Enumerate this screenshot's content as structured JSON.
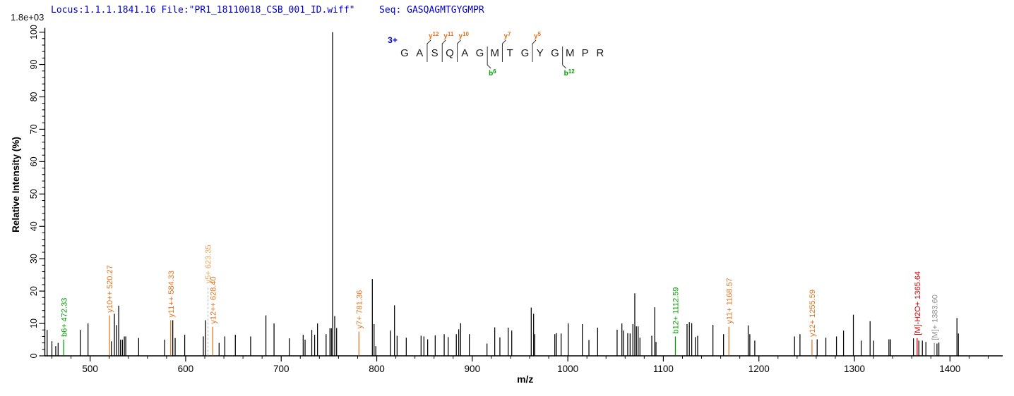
{
  "header": {
    "locus_file": "Locus:1.1.1.1841.16 File:\"PR1_18110018_CSB_001_ID.wiff\"",
    "seq_label": "Seq:",
    "seq_value": "GASQAGMTGYGMPR"
  },
  "intensity_scale": "1.8e+03",
  "sequence_overlay": {
    "charge": "3+",
    "residues": [
      {
        "aa": "G"
      },
      {
        "aa": "A"
      },
      {
        "aa": "S",
        "top": "y12"
      },
      {
        "aa": "Q",
        "top": "y11"
      },
      {
        "aa": "A",
        "top": "y10"
      },
      {
        "aa": "G"
      },
      {
        "aa": "M",
        "bottom": "b6"
      },
      {
        "aa": "T",
        "top": "y7"
      },
      {
        "aa": "G"
      },
      {
        "aa": "Y",
        "top": "y5"
      },
      {
        "aa": "G"
      },
      {
        "aa": "M",
        "bottom": "b12"
      },
      {
        "aa": "P"
      },
      {
        "aa": "R"
      }
    ]
  },
  "colors": {
    "peak_default": "#000000",
    "b_ion": "#00a000",
    "y_ion": "#e4731c",
    "y_faded": "#eca35c",
    "dashed_marker": "#b9c3ce",
    "precursor_loss": "#d40000",
    "precursor": "#909090",
    "header_text": "#0000cc",
    "axis": "#000000",
    "residue_text": "#1a1a1a",
    "divider": "#333333"
  },
  "chart_data": {
    "type": "bar",
    "subtype": "mass-spectrum",
    "title": "",
    "xlabel": "m/z",
    "ylabel": "Relative  Intensity (%)",
    "max_intensity_label": "1.8e+03",
    "xlim": [
      452.6,
      1455.2
    ],
    "ylim": [
      0,
      100
    ],
    "x_ticks": [
      500,
      600,
      700,
      800,
      900,
      1000,
      1100,
      1200,
      1300,
      1400
    ],
    "x_minor_step": 20,
    "y_ticks": [
      0,
      10,
      20,
      30,
      40,
      50,
      60,
      70,
      80,
      90,
      100
    ],
    "y_minor_step": 2,
    "grid": false,
    "peaks": [
      {
        "mz": 455.0,
        "i": 8
      },
      {
        "mz": 460.0,
        "i": 4.5
      },
      {
        "mz": 464.0,
        "i": 3
      },
      {
        "mz": 466.5,
        "i": 4
      },
      {
        "mz": 472.33,
        "i": 5,
        "type": "b_ion",
        "label": "b6+ 472.33"
      },
      {
        "mz": 489.7,
        "i": 8
      },
      {
        "mz": 497.8,
        "i": 10
      },
      {
        "mz": 520.27,
        "i": 12.5,
        "type": "y_ion",
        "label": "y10++ 520.27"
      },
      {
        "mz": 522.3,
        "i": 4.5
      },
      {
        "mz": 525.4,
        "i": 13
      },
      {
        "mz": 527.6,
        "i": 9.5
      },
      {
        "mz": 529.9,
        "i": 15.5
      },
      {
        "mz": 531.8,
        "i": 5
      },
      {
        "mz": 533.8,
        "i": 5
      },
      {
        "mz": 535.8,
        "i": 6
      },
      {
        "mz": 537.3,
        "i": 6
      },
      {
        "mz": 550.8,
        "i": 5.5
      },
      {
        "mz": 578.0,
        "i": 5
      },
      {
        "mz": 584.33,
        "i": 11,
        "type": "y_ion",
        "label": "y11++ 584.33"
      },
      {
        "mz": 586.5,
        "i": 11
      },
      {
        "mz": 589.0,
        "i": 5.5
      },
      {
        "mz": 599.0,
        "i": 6.5
      },
      {
        "mz": 618.5,
        "i": 6
      },
      {
        "mz": 620.8,
        "i": 11
      },
      {
        "mz": 623.35,
        "i": 21.5,
        "type": "y_faded",
        "dashed": true,
        "label": "y5+ 623.35"
      },
      {
        "mz": 628.4,
        "i": 9,
        "type": "y_ion",
        "label": "y12++ 628.40"
      },
      {
        "mz": 635.0,
        "i": 4
      },
      {
        "mz": 641.0,
        "i": 6
      },
      {
        "mz": 652.0,
        "i": 6.5
      },
      {
        "mz": 668.0,
        "i": 6
      },
      {
        "mz": 684.0,
        "i": 12.5
      },
      {
        "mz": 692.5,
        "i": 10
      },
      {
        "mz": 708.5,
        "i": 5.4
      },
      {
        "mz": 723.0,
        "i": 6.5
      },
      {
        "mz": 725.0,
        "i": 5
      },
      {
        "mz": 732.0,
        "i": 8
      },
      {
        "mz": 735.0,
        "i": 6.5
      },
      {
        "mz": 738.0,
        "i": 10
      },
      {
        "mz": 747.0,
        "i": 6.7
      },
      {
        "mz": 751.0,
        "i": 8.5
      },
      {
        "mz": 752.5,
        "i": 8.5
      },
      {
        "mz": 753.8,
        "i": 100
      },
      {
        "mz": 756.0,
        "i": 12.3
      },
      {
        "mz": 758.0,
        "i": 8.6
      },
      {
        "mz": 781.36,
        "i": 7.5,
        "type": "y_ion",
        "label": "y7+ 781.36"
      },
      {
        "mz": 795.4,
        "i": 23.7
      },
      {
        "mz": 797.2,
        "i": 9.8
      },
      {
        "mz": 799.0,
        "i": 3
      },
      {
        "mz": 814.4,
        "i": 7.8
      },
      {
        "mz": 818.6,
        "i": 15.6
      },
      {
        "mz": 821.3,
        "i": 6.2
      },
      {
        "mz": 830.9,
        "i": 5.6
      },
      {
        "mz": 846.4,
        "i": 6.2
      },
      {
        "mz": 849.4,
        "i": 6
      },
      {
        "mz": 853.3,
        "i": 5.1
      },
      {
        "mz": 861.2,
        "i": 6.3
      },
      {
        "mz": 870.6,
        "i": 6.7
      },
      {
        "mz": 874.8,
        "i": 5.8
      },
      {
        "mz": 883.3,
        "i": 6.7
      },
      {
        "mz": 885.8,
        "i": 8.2
      },
      {
        "mz": 887.8,
        "i": 10.1
      },
      {
        "mz": 896.9,
        "i": 6.7
      },
      {
        "mz": 915.4,
        "i": 3.8
      },
      {
        "mz": 923.5,
        "i": 8.8
      },
      {
        "mz": 928.9,
        "i": 5.7
      },
      {
        "mz": 937.6,
        "i": 8.7
      },
      {
        "mz": 941.3,
        "i": 7.8
      },
      {
        "mz": 961.7,
        "i": 14.9
      },
      {
        "mz": 964.2,
        "i": 13
      },
      {
        "mz": 965.4,
        "i": 6.7
      },
      {
        "mz": 986.4,
        "i": 6.7
      },
      {
        "mz": 988.1,
        "i": 7
      },
      {
        "mz": 993.0,
        "i": 6.9
      },
      {
        "mz": 1000.4,
        "i": 10
      },
      {
        "mz": 1015.2,
        "i": 9.8
      },
      {
        "mz": 1022.1,
        "i": 4.9
      },
      {
        "mz": 1031.2,
        "i": 8.7
      },
      {
        "mz": 1051.6,
        "i": 8.1
      },
      {
        "mz": 1056.6,
        "i": 10
      },
      {
        "mz": 1058.3,
        "i": 7.8
      },
      {
        "mz": 1062.7,
        "i": 7
      },
      {
        "mz": 1065.2,
        "i": 6.9
      },
      {
        "mz": 1068.1,
        "i": 9.8
      },
      {
        "mz": 1070.1,
        "i": 19.3
      },
      {
        "mz": 1071.8,
        "i": 9.1
      },
      {
        "mz": 1073.6,
        "i": 9.1
      },
      {
        "mz": 1075.5,
        "i": 5.6
      },
      {
        "mz": 1087.9,
        "i": 6.2
      },
      {
        "mz": 1091.0,
        "i": 15
      },
      {
        "mz": 1092.3,
        "i": 4.3
      },
      {
        "mz": 1112.59,
        "i": 6,
        "type": "b_ion",
        "label": "b12+ 1112.59"
      },
      {
        "mz": 1124.8,
        "i": 9.8
      },
      {
        "mz": 1127.2,
        "i": 10.4
      },
      {
        "mz": 1129.7,
        "i": 10.1
      },
      {
        "mz": 1133.4,
        "i": 5.8
      },
      {
        "mz": 1135.9,
        "i": 6.2
      },
      {
        "mz": 1151.9,
        "i": 9.6
      },
      {
        "mz": 1163.0,
        "i": 6.7
      },
      {
        "mz": 1168.57,
        "i": 9,
        "type": "y_ion",
        "label": "y11+ 1168.57"
      },
      {
        "mz": 1188.8,
        "i": 9.4
      },
      {
        "mz": 1190.5,
        "i": 6.7
      },
      {
        "mz": 1195.7,
        "i": 4.7
      },
      {
        "mz": 1237.3,
        "i": 6
      },
      {
        "mz": 1243.0,
        "i": 6.7
      },
      {
        "mz": 1255.59,
        "i": 5,
        "type": "y_ion",
        "label": "y12+ 1255.59"
      },
      {
        "mz": 1261.0,
        "i": 5.1
      },
      {
        "mz": 1270.1,
        "i": 5.6
      },
      {
        "mz": 1281.2,
        "i": 6
      },
      {
        "mz": 1288.6,
        "i": 7.8
      },
      {
        "mz": 1298.9,
        "i": 12.7
      },
      {
        "mz": 1307.1,
        "i": 4.7
      },
      {
        "mz": 1316.4,
        "i": 10.7
      },
      {
        "mz": 1320.1,
        "i": 4.7
      },
      {
        "mz": 1336.1,
        "i": 5.1
      },
      {
        "mz": 1337.8,
        "i": 5.1
      },
      {
        "mz": 1361.8,
        "i": 5.4
      },
      {
        "mz": 1365.64,
        "i": 5.5,
        "type": "precursor_loss",
        "label": "[M]-H2O+ 1365.64"
      },
      {
        "mz": 1367.4,
        "i": 4.7
      },
      {
        "mz": 1371.1,
        "i": 4.7
      },
      {
        "mz": 1374.8,
        "i": 4.3
      },
      {
        "mz": 1383.6,
        "i": 4,
        "type": "precursor",
        "label": "[M]+ 1383.60"
      },
      {
        "mz": 1386.4,
        "i": 3.8
      },
      {
        "mz": 1388.4,
        "i": 4.1
      },
      {
        "mz": 1407.3,
        "i": 11.7
      },
      {
        "mz": 1408.8,
        "i": 6.9
      }
    ]
  }
}
